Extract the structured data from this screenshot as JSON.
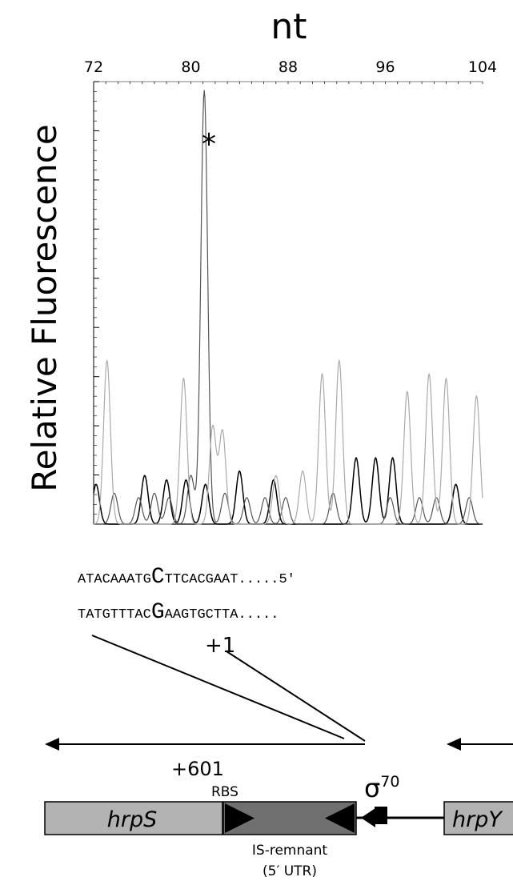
{
  "chart_data": {
    "type": "line",
    "title": "",
    "xlabel": "nt",
    "ylabel": "Relative Fluorescence",
    "xlim": [
      72,
      104
    ],
    "x_ticks": [
      "72",
      "80",
      "88",
      "96",
      "104"
    ],
    "y_ticks_major": 9,
    "y_ticks_minor": 45,
    "annotation": "*",
    "annotation_x": 81,
    "series": [
      {
        "color": "#000000",
        "width": 1.5,
        "peaks": [
          [
            72.2,
            0.09
          ],
          [
            76.2,
            0.11
          ],
          [
            78.0,
            0.1
          ],
          [
            79.6,
            0.1
          ],
          [
            81.2,
            0.09
          ],
          [
            84.0,
            0.12
          ],
          [
            86.8,
            0.1
          ],
          [
            93.6,
            0.15
          ],
          [
            95.2,
            0.15
          ],
          [
            96.6,
            0.15
          ],
          [
            101.8,
            0.09
          ]
        ]
      },
      {
        "color": "#555555",
        "width": 1.2,
        "peaks": [
          [
            73.7,
            0.07
          ],
          [
            75.7,
            0.06
          ],
          [
            77.0,
            0.07
          ],
          [
            78.2,
            0.06
          ],
          [
            80.0,
            0.11
          ],
          [
            81.1,
            0.98
          ],
          [
            82.8,
            0.07
          ],
          [
            84.6,
            0.06
          ],
          [
            86.1,
            0.06
          ],
          [
            87.8,
            0.06
          ],
          [
            91.7,
            0.07
          ],
          [
            96.4,
            0.06
          ],
          [
            98.8,
            0.06
          ],
          [
            100.2,
            0.06
          ],
          [
            102.9,
            0.06
          ]
        ]
      },
      {
        "color": "#aaaaaa",
        "width": 1.2,
        "peaks": [
          [
            73.1,
            0.37
          ],
          [
            79.4,
            0.33
          ],
          [
            81.8,
            0.22
          ],
          [
            82.6,
            0.21
          ],
          [
            87.0,
            0.11
          ],
          [
            89.2,
            0.12
          ],
          [
            90.8,
            0.34
          ],
          [
            92.2,
            0.37
          ],
          [
            97.8,
            0.3
          ],
          [
            99.6,
            0.34
          ],
          [
            101.0,
            0.33
          ],
          [
            103.5,
            0.29
          ]
        ]
      }
    ]
  },
  "sequence": {
    "top_strand": [
      "ATACAAATG",
      "C",
      "TTCACGAAT.....5′"
    ],
    "bottom_strand": [
      "TATGTTTAC",
      "G",
      "AAGTGCTTA....."
    ]
  },
  "map": {
    "start_label": "+1",
    "end_label": "+601",
    "rbs_label": "RBS",
    "sigma_label": "σ",
    "sigma_sup": "70",
    "gene_left": "hrpS",
    "gene_right": "hrpY",
    "is_label_1": "IS-remnant",
    "is_label_2": "(5′ UTR)",
    "colors": {
      "gene_box": "#b3b3b3",
      "is_box": "#707070"
    }
  }
}
